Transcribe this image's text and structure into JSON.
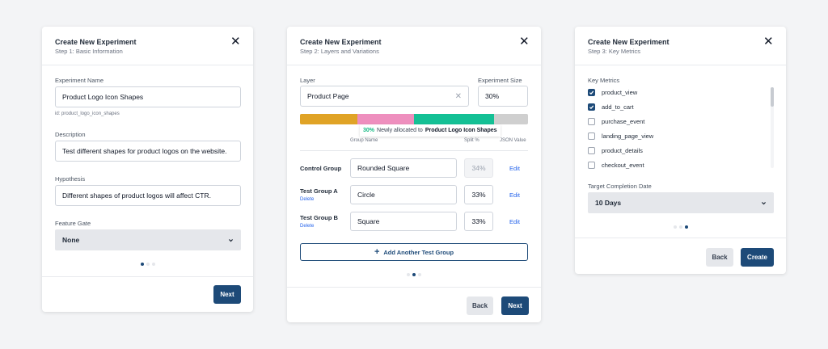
{
  "colors": {
    "primary": "#1d4a78",
    "segment_orange": "#e0a326",
    "segment_pink": "#ee8fbe",
    "segment_teal": "#14c095",
    "segment_gray": "#cfcfcf",
    "highlight_green": "#10b981"
  },
  "step1": {
    "title": "Create New Experiment",
    "step": "Step 1: Basic Information",
    "name_label": "Experiment Name",
    "name_value": "Product Logo Icon Shapes",
    "id_hint": "id: product_logo_icon_shapes",
    "description_label": "Description",
    "description_value": "Test different shapes for product logos on the website.",
    "hypothesis_label": "Hypothesis",
    "hypothesis_value": "Different shapes of product logos will affect CTR.",
    "gate_label": "Feature Gate",
    "gate_value": "None",
    "next_label": "Next",
    "page_index": 1,
    "page_count": 3
  },
  "step2": {
    "title": "Create New Experiment",
    "step": "Step 2: Layers and Variations",
    "layer_label": "Layer",
    "layer_value": "Product Page",
    "size_label": "Experiment Size",
    "size_value": "30%",
    "allocation": [
      25,
      25,
      35,
      15
    ],
    "tooltip_pct": "30%",
    "tooltip_text": "Newly allocated to",
    "tooltip_name": "Product Logo Icon Shapes",
    "col_group_name": "Group Name",
    "col_split": "Split %",
    "col_json": "JSON Value",
    "groups": [
      {
        "label": "Control Group",
        "name": "Rounded Square",
        "split": "34%",
        "edit": "Edit"
      },
      {
        "label": "Test Group A",
        "delete": "Delete",
        "name": "Circle",
        "split": "33%",
        "edit": "Edit"
      },
      {
        "label": "Test Group B",
        "delete": "Delete",
        "name": "Square",
        "split": "33%",
        "edit": "Edit"
      }
    ],
    "add_group_label": "Add Another Test Group",
    "back_label": "Back",
    "next_label": "Next",
    "page_index": 2,
    "page_count": 3
  },
  "step3": {
    "title": "Create New Experiment",
    "step": "Step 3: Key Metrics",
    "metrics_label": "Key Metrics",
    "metrics": [
      {
        "name": "product_view",
        "checked": true
      },
      {
        "name": "add_to_cart",
        "checked": true
      },
      {
        "name": "purchase_event",
        "checked": false
      },
      {
        "name": "landing_page_view",
        "checked": false
      },
      {
        "name": "product_details",
        "checked": false
      },
      {
        "name": "checkout_event",
        "checked": false
      }
    ],
    "date_label": "Target Completion Date",
    "date_value": "10 Days",
    "back_label": "Back",
    "create_label": "Create",
    "page_index": 3,
    "page_count": 3
  }
}
